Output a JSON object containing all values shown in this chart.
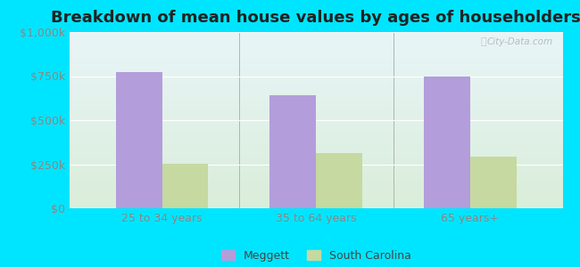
{
  "title": "Breakdown of mean house values by ages of householders",
  "categories": [
    "25 to 34 years",
    "35 to 64 years",
    "65 years+"
  ],
  "meggett_values": [
    775000,
    640000,
    745000
  ],
  "sc_values": [
    255000,
    315000,
    295000
  ],
  "ylim": [
    0,
    1000000
  ],
  "yticks": [
    0,
    250000,
    500000,
    750000,
    1000000
  ],
  "meggett_color": "#b39ddb",
  "sc_color": "#c5d9a0",
  "background_outer": "#00e5ff",
  "legend_meggett": "Meggett",
  "legend_sc": "South Carolina",
  "bar_width": 0.3,
  "watermark": "City-Data.com",
  "title_fontsize": 13,
  "tick_fontsize": 9,
  "legend_fontsize": 9,
  "grid_color": "#ffffff",
  "tick_color": "#888888",
  "bg_top": "#e8f5f8",
  "bg_bottom": "#daeeda"
}
